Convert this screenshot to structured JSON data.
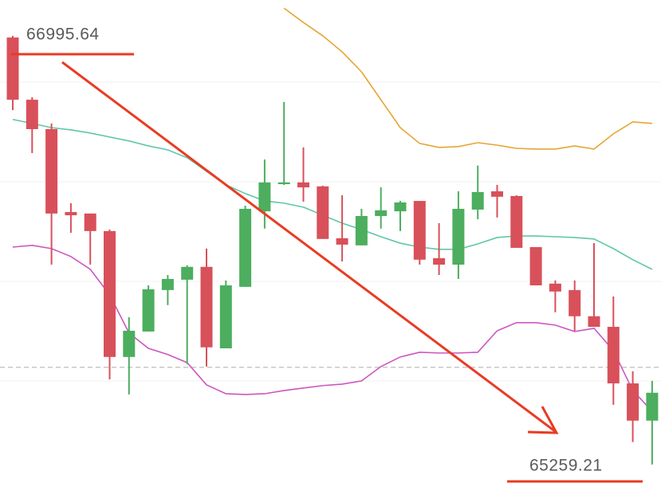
{
  "chart_data": {
    "type": "candlestick",
    "ylim": [
      65152,
      67141
    ],
    "up_color": "#4cae5e",
    "down_color": "#d8505a",
    "high_marker": 66995.64,
    "low_marker": 65259.21,
    "reference_line": 65653,
    "candles": {
      "open": [
        66989,
        66737,
        66618,
        66282,
        66276,
        66205,
        65695,
        65798,
        65966,
        66008,
        66060,
        65730,
        65979,
        66285,
        66395,
        66402,
        66386,
        66176,
        66147,
        66266,
        66285,
        66327,
        66095,
        66069,
        66292,
        66366,
        66347,
        66140,
        65992,
        65966,
        65860,
        65817,
        65588,
        65437
      ],
      "high": [
        66995.64,
        66747,
        66641,
        66318,
        66276,
        66211,
        65856,
        65985,
        66027,
        66066,
        66134,
        66005,
        66308,
        66495,
        66728,
        66544,
        66389,
        66350,
        66295,
        66382,
        66327,
        66327,
        66237,
        66366,
        66470,
        66392,
        66350,
        66140,
        66005,
        66005,
        66156,
        65940,
        65637,
        65598
      ],
      "low": [
        66695,
        66521,
        66069,
        66198,
        66069,
        65604,
        65543,
        65798,
        65905,
        65666,
        65656,
        65730,
        65979,
        66215,
        66392,
        66324,
        66173,
        66082,
        66147,
        66215,
        66205,
        66069,
        66027,
        66011,
        66253,
        66260,
        66137,
        65985,
        65876,
        65801,
        65817,
        65501,
        65350,
        65259.21
      ],
      "close": [
        66737,
        66618,
        66276,
        66269,
        66205,
        65695,
        65801,
        65969,
        66011,
        66060,
        65734,
        65985,
        66295,
        66402,
        66402,
        66382,
        66173,
        66150,
        66266,
        66289,
        66321,
        66089,
        66069,
        66295,
        66363,
        66344,
        66137,
        65985,
        65960,
        65860,
        65817,
        65588,
        65437,
        65550
      ]
    },
    "bands": [
      {
        "color": "#e6a532",
        "values": [
          null,
          null,
          null,
          null,
          null,
          null,
          null,
          null,
          null,
          null,
          null,
          null,
          null,
          null,
          67108,
          67050,
          66996,
          66931,
          66850,
          66737,
          66624,
          66560,
          66544,
          66547,
          66563,
          66553,
          66540,
          66537,
          66537,
          66550,
          66537,
          66599,
          66647,
          66641
        ]
      },
      {
        "color": "#5fc7a8",
        "values": [
          66657,
          66641,
          66624,
          66615,
          66602,
          66586,
          66570,
          66550,
          66534,
          66502,
          66447,
          66392,
          66357,
          66327,
          66318,
          66302,
          66269,
          66237,
          66211,
          66182,
          66156,
          66140,
          66131,
          66131,
          66153,
          66179,
          66185,
          66185,
          66182,
          66179,
          66173,
          66134,
          66089,
          66050
        ]
      },
      {
        "color": "#cc56c0",
        "values": [
          66140,
          66147,
          66134,
          66102,
          66050,
          65947,
          65792,
          65730,
          65705,
          65672,
          65582,
          65546,
          65543,
          65546,
          65559,
          65569,
          65579,
          65585,
          65598,
          65656,
          65695,
          65714,
          65711,
          65711,
          65714,
          65801,
          65834,
          65834,
          65824,
          65798,
          65811,
          65721,
          65559,
          65475
        ]
      }
    ]
  }
}
